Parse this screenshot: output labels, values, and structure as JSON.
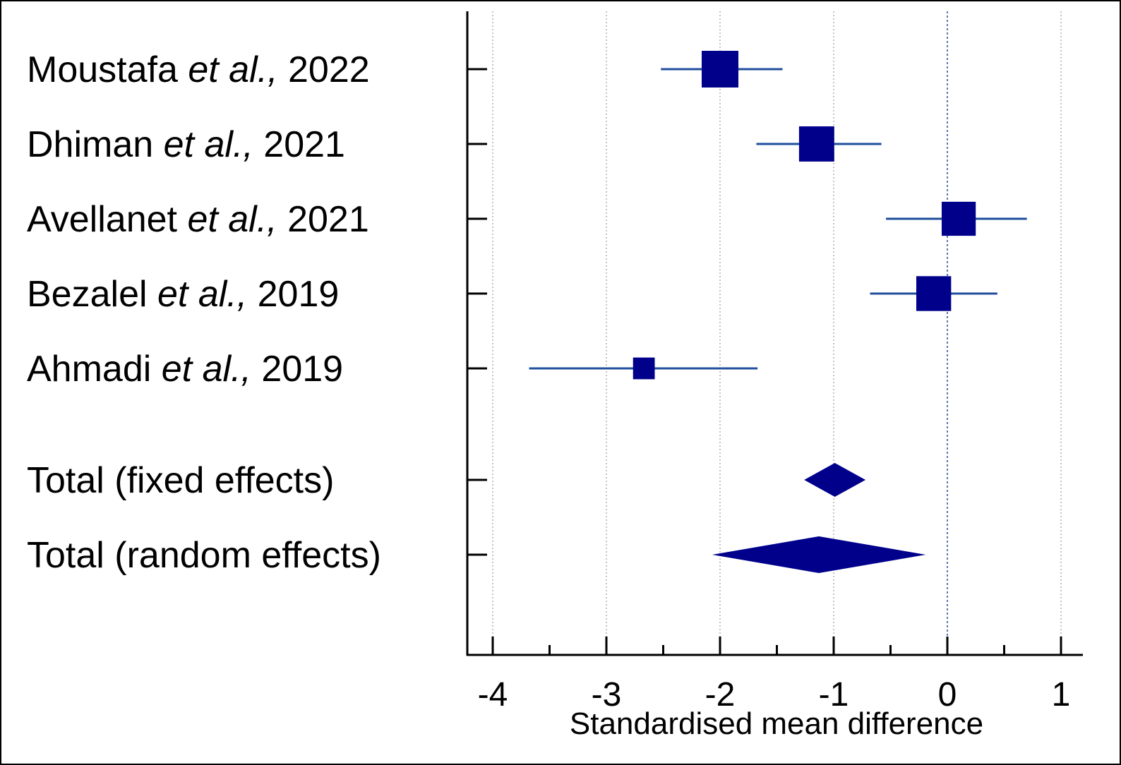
{
  "chart_data": {
    "type": "forest",
    "title": "",
    "xlabel": "Standardised mean difference",
    "xlim": [
      -4.2,
      1.2
    ],
    "xticks": [
      -4,
      -3,
      -2,
      -1,
      0,
      1
    ],
    "xtick_labels": [
      "-4",
      "-3",
      "-2",
      "-1",
      "0",
      "1"
    ],
    "grid": true,
    "reference_line": 0,
    "studies": [
      {
        "author": "Moustafa",
        "etal": "et al.,",
        "year": "2022",
        "effect": -2.0,
        "ci_low": -2.52,
        "ci_high": -1.45,
        "weight": 1.0
      },
      {
        "author": "Dhiman",
        "etal": "et al.,",
        "year": "2021",
        "effect": -1.15,
        "ci_low": -1.68,
        "ci_high": -0.58,
        "weight": 0.92
      },
      {
        "author": "Avellanet",
        "etal": "et al.,",
        "year": "2021",
        "effect": 0.1,
        "ci_low": -0.54,
        "ci_high": 0.7,
        "weight": 0.86
      },
      {
        "author": "Bezalel",
        "etal": "et al.,",
        "year": "2019",
        "effect": -0.12,
        "ci_low": -0.68,
        "ci_high": 0.44,
        "weight": 0.9
      },
      {
        "author": "Ahmadi",
        "etal": "et al.,",
        "year": "2019",
        "effect": -2.67,
        "ci_low": -3.68,
        "ci_high": -1.67,
        "weight": 0.35
      }
    ],
    "totals": [
      {
        "label": "Total (fixed effects)",
        "effect": -0.99,
        "ci_low": -1.26,
        "ci_high": -0.72
      },
      {
        "label": "Total (random effects)",
        "effect": -1.13,
        "ci_low": -2.07,
        "ci_high": -0.19
      }
    ],
    "colors": {
      "marker": "#00008b",
      "ci_line": "#1f4e9c",
      "grid": "#b0b0b0",
      "reference": "#1f4e9c",
      "axis": "#000000"
    }
  }
}
